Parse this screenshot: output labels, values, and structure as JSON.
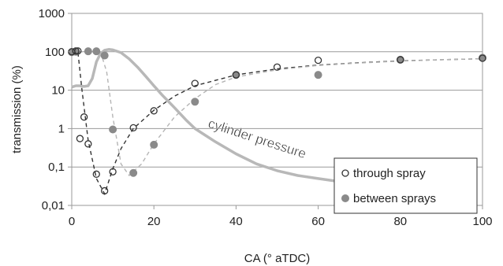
{
  "chart_data": {
    "type": "scatter",
    "title": "",
    "xlabel": "CA (° aTDC)",
    "ylabel": "transmission (%)",
    "xlim": [
      0,
      100
    ],
    "ylim": [
      0.01,
      1000
    ],
    "y_scale": "log",
    "x_ticks": [
      0,
      20,
      40,
      60,
      80,
      100
    ],
    "y_ticks": [
      {
        "value": 0.01,
        "label": "0,01"
      },
      {
        "value": 0.1,
        "label": "0,1"
      },
      {
        "value": 1,
        "label": "1"
      },
      {
        "value": 10,
        "label": "10"
      },
      {
        "value": 100,
        "label": "100"
      },
      {
        "value": 1000,
        "label": "1000"
      }
    ],
    "grid": "horizontal",
    "legend_position": "bottom-right",
    "annotation": "cylinder pressure",
    "series": [
      {
        "name": "through spray",
        "marker": "open-circle",
        "color": "#333333",
        "points": [
          {
            "x": 0,
            "y": 100
          },
          {
            "x": 1,
            "y": 105
          },
          {
            "x": 1.5,
            "y": 105
          },
          {
            "x": 2,
            "y": 0.55
          },
          {
            "x": 3,
            "y": 2
          },
          {
            "x": 4,
            "y": 0.4
          },
          {
            "x": 6,
            "y": 0.065
          },
          {
            "x": 8,
            "y": 0.024
          },
          {
            "x": 10,
            "y": 0.075
          },
          {
            "x": 15,
            "y": 1.05
          },
          {
            "x": 20,
            "y": 2.9
          },
          {
            "x": 30,
            "y": 15
          },
          {
            "x": 40,
            "y": 25
          },
          {
            "x": 50,
            "y": 40
          },
          {
            "x": 60,
            "y": 60
          },
          {
            "x": 80,
            "y": 62
          },
          {
            "x": 100,
            "y": 68
          }
        ],
        "fit": [
          {
            "x": 0,
            "y": 100
          },
          {
            "x": 1.5,
            "y": 100
          },
          {
            "x": 2.5,
            "y": 10
          },
          {
            "x": 4,
            "y": 0.5
          },
          {
            "x": 6,
            "y": 0.05
          },
          {
            "x": 8,
            "y": 0.02
          },
          {
            "x": 10,
            "y": 0.09
          },
          {
            "x": 12,
            "y": 0.3
          },
          {
            "x": 15,
            "y": 1
          },
          {
            "x": 20,
            "y": 3
          },
          {
            "x": 25,
            "y": 7
          },
          {
            "x": 30,
            "y": 13
          },
          {
            "x": 40,
            "y": 25
          },
          {
            "x": 50,
            "y": 36
          },
          {
            "x": 60,
            "y": 45
          },
          {
            "x": 70,
            "y": 52
          },
          {
            "x": 80,
            "y": 58
          },
          {
            "x": 90,
            "y": 62
          },
          {
            "x": 100,
            "y": 66
          }
        ]
      },
      {
        "name": "between sprays",
        "marker": "filled-circle",
        "color": "#8a8a8a",
        "points": [
          {
            "x": 0,
            "y": 98
          },
          {
            "x": 1,
            "y": 100
          },
          {
            "x": 4,
            "y": 103
          },
          {
            "x": 6,
            "y": 103
          },
          {
            "x": 8,
            "y": 80
          },
          {
            "x": 10,
            "y": 0.95
          },
          {
            "x": 15,
            "y": 0.07
          },
          {
            "x": 20,
            "y": 0.38
          },
          {
            "x": 30,
            "y": 5
          },
          {
            "x": 40,
            "y": 25
          },
          {
            "x": 60,
            "y": 25
          },
          {
            "x": 80,
            "y": 62
          },
          {
            "x": 100,
            "y": 70
          }
        ],
        "fit": [
          {
            "x": 0,
            "y": 100
          },
          {
            "x": 7,
            "y": 100
          },
          {
            "x": 8.5,
            "y": 30
          },
          {
            "x": 10,
            "y": 2
          },
          {
            "x": 12,
            "y": 0.12
          },
          {
            "x": 14,
            "y": 0.06
          },
          {
            "x": 17,
            "y": 0.12
          },
          {
            "x": 20,
            "y": 0.4
          },
          {
            "x": 25,
            "y": 2
          },
          {
            "x": 30,
            "y": 6
          },
          {
            "x": 35,
            "y": 14
          },
          {
            "x": 40,
            "y": 22
          },
          {
            "x": 50,
            "y": 34
          },
          {
            "x": 60,
            "y": 44
          },
          {
            "x": 70,
            "y": 51
          },
          {
            "x": 80,
            "y": 57
          },
          {
            "x": 90,
            "y": 62
          },
          {
            "x": 100,
            "y": 66
          }
        ]
      }
    ],
    "cylinder_pressure_curve": [
      {
        "x": 0,
        "y": 12
      },
      {
        "x": 1,
        "y": 13
      },
      {
        "x": 2,
        "y": 13
      },
      {
        "x": 3,
        "y": 12.5
      },
      {
        "x": 4,
        "y": 13
      },
      {
        "x": 5,
        "y": 20
      },
      {
        "x": 6,
        "y": 55
      },
      {
        "x": 7,
        "y": 90
      },
      {
        "x": 8,
        "y": 110
      },
      {
        "x": 9,
        "y": 115
      },
      {
        "x": 10,
        "y": 112
      },
      {
        "x": 12,
        "y": 95
      },
      {
        "x": 14,
        "y": 65
      },
      {
        "x": 16,
        "y": 40
      },
      {
        "x": 18,
        "y": 23
      },
      {
        "x": 20,
        "y": 13
      },
      {
        "x": 22,
        "y": 7.5
      },
      {
        "x": 25,
        "y": 3.5
      },
      {
        "x": 28,
        "y": 1.6
      },
      {
        "x": 30,
        "y": 1
      },
      {
        "x": 35,
        "y": 0.45
      },
      {
        "x": 40,
        "y": 0.22
      },
      {
        "x": 45,
        "y": 0.12
      },
      {
        "x": 50,
        "y": 0.08
      },
      {
        "x": 55,
        "y": 0.06
      },
      {
        "x": 60,
        "y": 0.05
      },
      {
        "x": 65,
        "y": 0.042
      },
      {
        "x": 70,
        "y": 0.037
      }
    ]
  }
}
